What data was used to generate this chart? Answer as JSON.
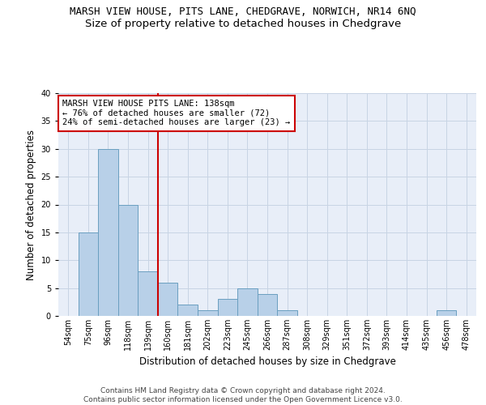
{
  "title": "MARSH VIEW HOUSE, PITS LANE, CHEDGRAVE, NORWICH, NR14 6NQ",
  "subtitle": "Size of property relative to detached houses in Chedgrave",
  "xlabel": "Distribution of detached houses by size in Chedgrave",
  "ylabel": "Number of detached properties",
  "categories": [
    "54sqm",
    "75sqm",
    "96sqm",
    "118sqm",
    "139sqm",
    "160sqm",
    "181sqm",
    "202sqm",
    "223sqm",
    "245sqm",
    "266sqm",
    "287sqm",
    "308sqm",
    "329sqm",
    "351sqm",
    "372sqm",
    "393sqm",
    "414sqm",
    "435sqm",
    "456sqm",
    "478sqm"
  ],
  "values": [
    0,
    15,
    30,
    20,
    8,
    6,
    2,
    1,
    3,
    5,
    4,
    1,
    0,
    0,
    0,
    0,
    0,
    0,
    0,
    1,
    0
  ],
  "bar_color": "#b8d0e8",
  "bar_edge_color": "#6a9fc0",
  "highlight_index": 4,
  "highlight_line_color": "#cc0000",
  "annotation_text": "MARSH VIEW HOUSE PITS LANE: 138sqm\n← 76% of detached houses are smaller (72)\n24% of semi-detached houses are larger (23) →",
  "annotation_box_color": "#ffffff",
  "annotation_box_edge": "#cc0000",
  "ylim": [
    0,
    40
  ],
  "yticks": [
    0,
    5,
    10,
    15,
    20,
    25,
    30,
    35,
    40
  ],
  "grid_color": "#c8d4e4",
  "bg_color": "#e8eef8",
  "footer_line1": "Contains HM Land Registry data © Crown copyright and database right 2024.",
  "footer_line2": "Contains public sector information licensed under the Open Government Licence v3.0.",
  "title_fontsize": 9,
  "subtitle_fontsize": 9.5,
  "xlabel_fontsize": 8.5,
  "ylabel_fontsize": 8.5,
  "tick_fontsize": 7,
  "annotation_fontsize": 7.5,
  "footer_fontsize": 6.5
}
